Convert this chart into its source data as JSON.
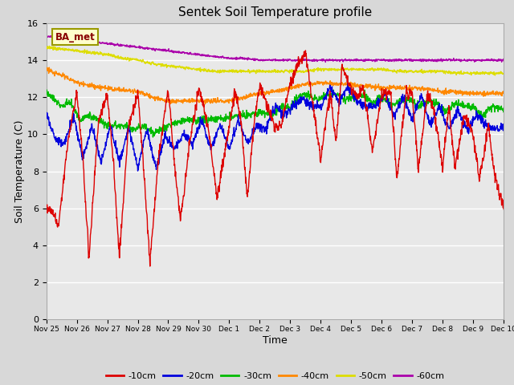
{
  "title": "Sentek Soil Temperature profile",
  "xlabel": "Time",
  "ylabel": "Soil Temperature (C)",
  "annotation": "BA_met",
  "ylim": [
    0,
    16
  ],
  "yticks": [
    0,
    2,
    4,
    6,
    8,
    10,
    12,
    14,
    16
  ],
  "xtick_labels": [
    "Nov 25",
    "Nov 26",
    "Nov 27",
    "Nov 28",
    "Nov 29",
    "Nov 30",
    "Dec 1",
    "Dec 2",
    "Dec 3",
    "Dec 4",
    "Dec 5",
    "Dec 6",
    "Dec 7",
    "Dec 8",
    "Dec 9",
    "Dec 10"
  ],
  "colors": {
    "-10cm": "#dd0000",
    "-20cm": "#0000dd",
    "-30cm": "#00bb00",
    "-40cm": "#ff8800",
    "-50cm": "#dddd00",
    "-60cm": "#aa00aa"
  },
  "fig_bg": "#d8d8d8",
  "plot_bg": "#e8e8e8",
  "grid_color": "#ffffff",
  "legend_entries": [
    "-10cm",
    "-20cm",
    "-30cm",
    "-40cm",
    "-50cm",
    "-60cm"
  ]
}
